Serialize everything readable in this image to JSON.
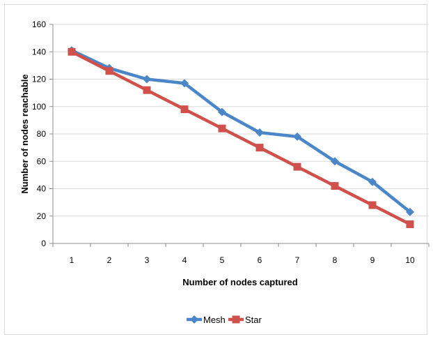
{
  "chart_data": {
    "type": "line",
    "title": "",
    "xlabel": "Number of nodes captured",
    "ylabel": "Number of nodes reachable",
    "x": [
      1,
      2,
      3,
      4,
      5,
      6,
      7,
      8,
      9,
      10
    ],
    "ylim": [
      0,
      160
    ],
    "yticks": [
      0,
      20,
      40,
      60,
      80,
      100,
      120,
      140,
      160
    ],
    "grid": true,
    "legend_position": "bottom",
    "series": [
      {
        "name": "Mesh",
        "color": "#4a86c8",
        "marker": "diamond",
        "values": [
          141,
          128,
          120,
          117,
          96,
          81,
          78,
          60,
          45,
          23
        ]
      },
      {
        "name": "Star",
        "color": "#d0504b",
        "marker": "square",
        "values": [
          140,
          126,
          112,
          98,
          84,
          70,
          56,
          42,
          28,
          14
        ]
      }
    ]
  }
}
